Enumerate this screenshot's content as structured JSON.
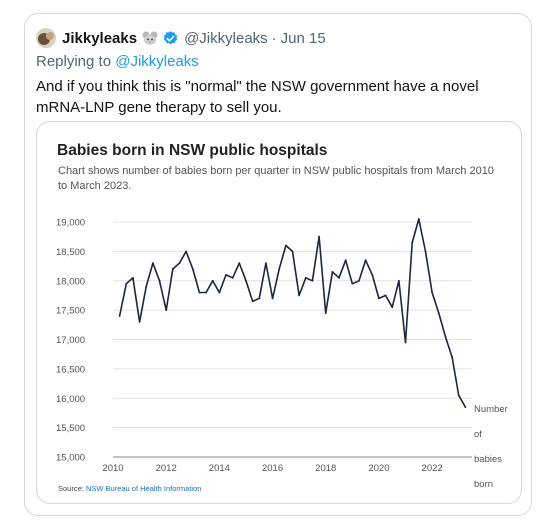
{
  "tweet": {
    "display_name": "Jikkyleaks",
    "name_emoji": "mouse-emoji",
    "verified": true,
    "handle": "@Jikkyleaks",
    "dot": "·",
    "date": "Jun 15",
    "reply_prefix": "Replying to",
    "reply_handle": "@Jikkyleaks",
    "text": "And if you think this is \"normal\" the NSW government have a novel mRNA-LNP gene therapy to sell you."
  },
  "colors": {
    "link": "#1d9bf0",
    "verified": "#1d9bf0",
    "line": "#1c2541",
    "border": "#cfd9de"
  },
  "chart_data": {
    "type": "line",
    "title": "Babies born in NSW public hospitals",
    "subtitle": "Chart shows number of babies born per quarter in NSW public hospitals from March 2010 to March 2023.",
    "source_prefix": "Source:",
    "source_name": "NSW Bureau of Health Information",
    "ylim": [
      15000,
      19000
    ],
    "xlim": [
      2010,
      2023.5
    ],
    "grid": true,
    "y_ticks": [
      "19,000",
      "18,500",
      "18,000",
      "17,500",
      "17,000",
      "16,500",
      "16,000",
      "15,500",
      "15,000"
    ],
    "y_tick_values": [
      19000,
      18500,
      18000,
      17500,
      17000,
      16500,
      16000,
      15500,
      15000
    ],
    "x_ticks": [
      "2010",
      "2012",
      "2014",
      "2016",
      "2018",
      "2020",
      "2022"
    ],
    "x_tick_values": [
      2010,
      2012,
      2014,
      2016,
      2018,
      2020,
      2022
    ],
    "series": [
      {
        "name_lines": [
          "Number",
          "of",
          "babies",
          "born"
        ],
        "x": [
          2010.25,
          2010.5,
          2010.75,
          2011,
          2011.25,
          2011.5,
          2011.75,
          2012,
          2012.25,
          2012.5,
          2012.75,
          2013,
          2013.25,
          2013.5,
          2013.75,
          2014,
          2014.25,
          2014.5,
          2014.75,
          2015,
          2015.25,
          2015.5,
          2015.75,
          2016,
          2016.25,
          2016.5,
          2016.75,
          2017,
          2017.25,
          2017.5,
          2017.75,
          2018,
          2018.25,
          2018.5,
          2018.75,
          2019,
          2019.25,
          2019.5,
          2019.75,
          2020,
          2020.25,
          2020.5,
          2020.75,
          2021,
          2021.25,
          2021.5,
          2021.75,
          2022,
          2022.25,
          2022.5,
          2022.75,
          2023,
          2023.25
        ],
        "values": [
          17400,
          17950,
          18050,
          17300,
          17900,
          18300,
          18000,
          17500,
          18200,
          18300,
          18500,
          18200,
          17800,
          17800,
          18000,
          17800,
          18100,
          18050,
          18300,
          18000,
          17650,
          17700,
          18300,
          17700,
          18200,
          18600,
          18500,
          17750,
          18050,
          18000,
          18750,
          17450,
          18150,
          18050,
          18350,
          17950,
          18000,
          18350,
          18100,
          17700,
          17750,
          17550,
          18000,
          16950,
          18650,
          19050,
          18500,
          17800,
          17450,
          17050,
          16700,
          16050,
          15850
        ]
      }
    ]
  }
}
